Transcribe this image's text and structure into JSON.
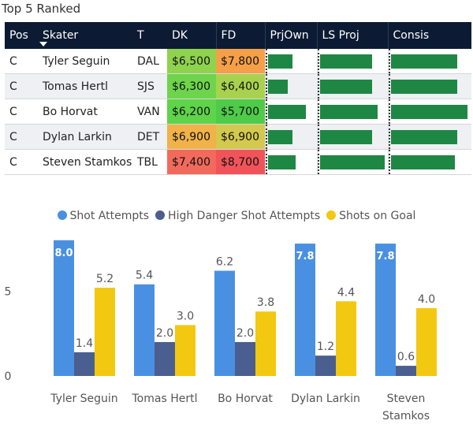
{
  "title": "Top 5 Ranked",
  "table": {
    "headers": [
      "Pos",
      "Skater",
      "T",
      "DK",
      "FD",
      "PrjOwn",
      "LS Proj",
      "Consis"
    ],
    "rows": [
      {
        "pos": "C",
        "skater": "Tyler Seguin",
        "team": "DAL",
        "dk": "$6,500",
        "fd": "$7,800",
        "dk_color": "#8fd24e",
        "fd_color": "#f5a048",
        "prjown": 0.52,
        "lsproj": 0.78,
        "consis": 0.84
      },
      {
        "pos": "C",
        "skater": "Tomas Hertl",
        "team": "SJS",
        "dk": "$6,300",
        "fd": "$6,400",
        "dk_color": "#6ed44c",
        "fd_color": "#a8d24e",
        "prjown": 0.42,
        "lsproj": 0.78,
        "consis": 0.84
      },
      {
        "pos": "C",
        "skater": "Bo Horvat",
        "team": "VAN",
        "dk": "$6,200",
        "fd": "$5,700",
        "dk_color": "#5fd34a",
        "fd_color": "#4ecb48",
        "prjown": 0.8,
        "lsproj": 0.87,
        "consis": 0.97
      },
      {
        "pos": "C",
        "skater": "Dylan Larkin",
        "team": "DET",
        "dk": "$6,900",
        "fd": "$6,900",
        "dk_color": "#f1b24a",
        "fd_color": "#d2c94e",
        "prjown": 0.52,
        "lsproj": 0.78,
        "consis": 0.84
      },
      {
        "pos": "C",
        "skater": "Steven Stamkos",
        "team": "TBL",
        "dk": "$7,400",
        "fd": "$8,700",
        "dk_color": "#f26a5c",
        "fd_color": "#f0545a",
        "prjown": 0.58,
        "lsproj": 0.98,
        "consis": 0.81
      }
    ]
  },
  "chart_data": {
    "type": "bar",
    "categories": [
      "Tyler Seguin",
      "Tomas Hertl",
      "Bo Horvat",
      "Dylan Larkin",
      "Steven Stamkos"
    ],
    "series": [
      {
        "name": "Shot Attempts",
        "color": "#4a90e2",
        "values": [
          8.0,
          5.4,
          6.2,
          7.8,
          7.8
        ]
      },
      {
        "name": "High Danger Shot Attempts",
        "color": "#4a5f8f",
        "values": [
          1.4,
          2.0,
          2.0,
          1.2,
          0.6
        ]
      },
      {
        "name": "Shots on Goal",
        "color": "#f2c811",
        "values": [
          5.2,
          3.0,
          3.8,
          4.4,
          4.0
        ]
      }
    ],
    "yticks": [
      0,
      5
    ],
    "ylim": [
      0,
      8.5
    ],
    "legend_position": "top-center",
    "grid": false
  }
}
